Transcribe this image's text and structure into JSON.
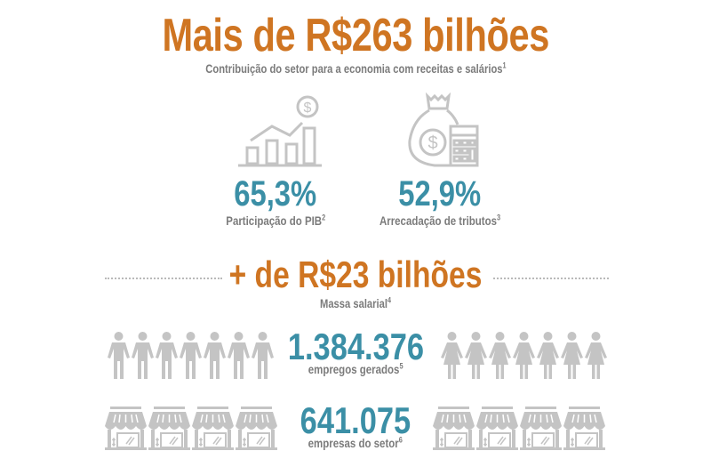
{
  "header": {
    "title": "Mais de R$263 bilhões",
    "subtitle": "Contribuição do setor para a economia com receitas e salários",
    "subtitle_sup": "1"
  },
  "stats": [
    {
      "icon": "growth-chart-dollar-icon",
      "value": "65,3%",
      "label": "Participação do PIB",
      "sup": "2"
    },
    {
      "icon": "money-bag-calculator-icon",
      "value": "52,9%",
      "label": "Arrecadação de tributos",
      "sup": "3"
    }
  ],
  "salary": {
    "title": "+ de R$23 bilhões",
    "label": "Massa salarial",
    "sup": "4"
  },
  "jobs": {
    "value": "1.384.376",
    "label": "empregos gerados",
    "sup": "5",
    "men_icon_count": 7,
    "women_icon_count": 7
  },
  "companies": {
    "value": "641.075",
    "label": "empresas do setor",
    "sup": "6",
    "left_store_count": 4,
    "right_store_count": 4
  },
  "colors": {
    "orange": "#cf7522",
    "teal": "#3b8fa6",
    "gray_text": "#7b7b7b",
    "icon_gray": "#c4c4c4"
  }
}
